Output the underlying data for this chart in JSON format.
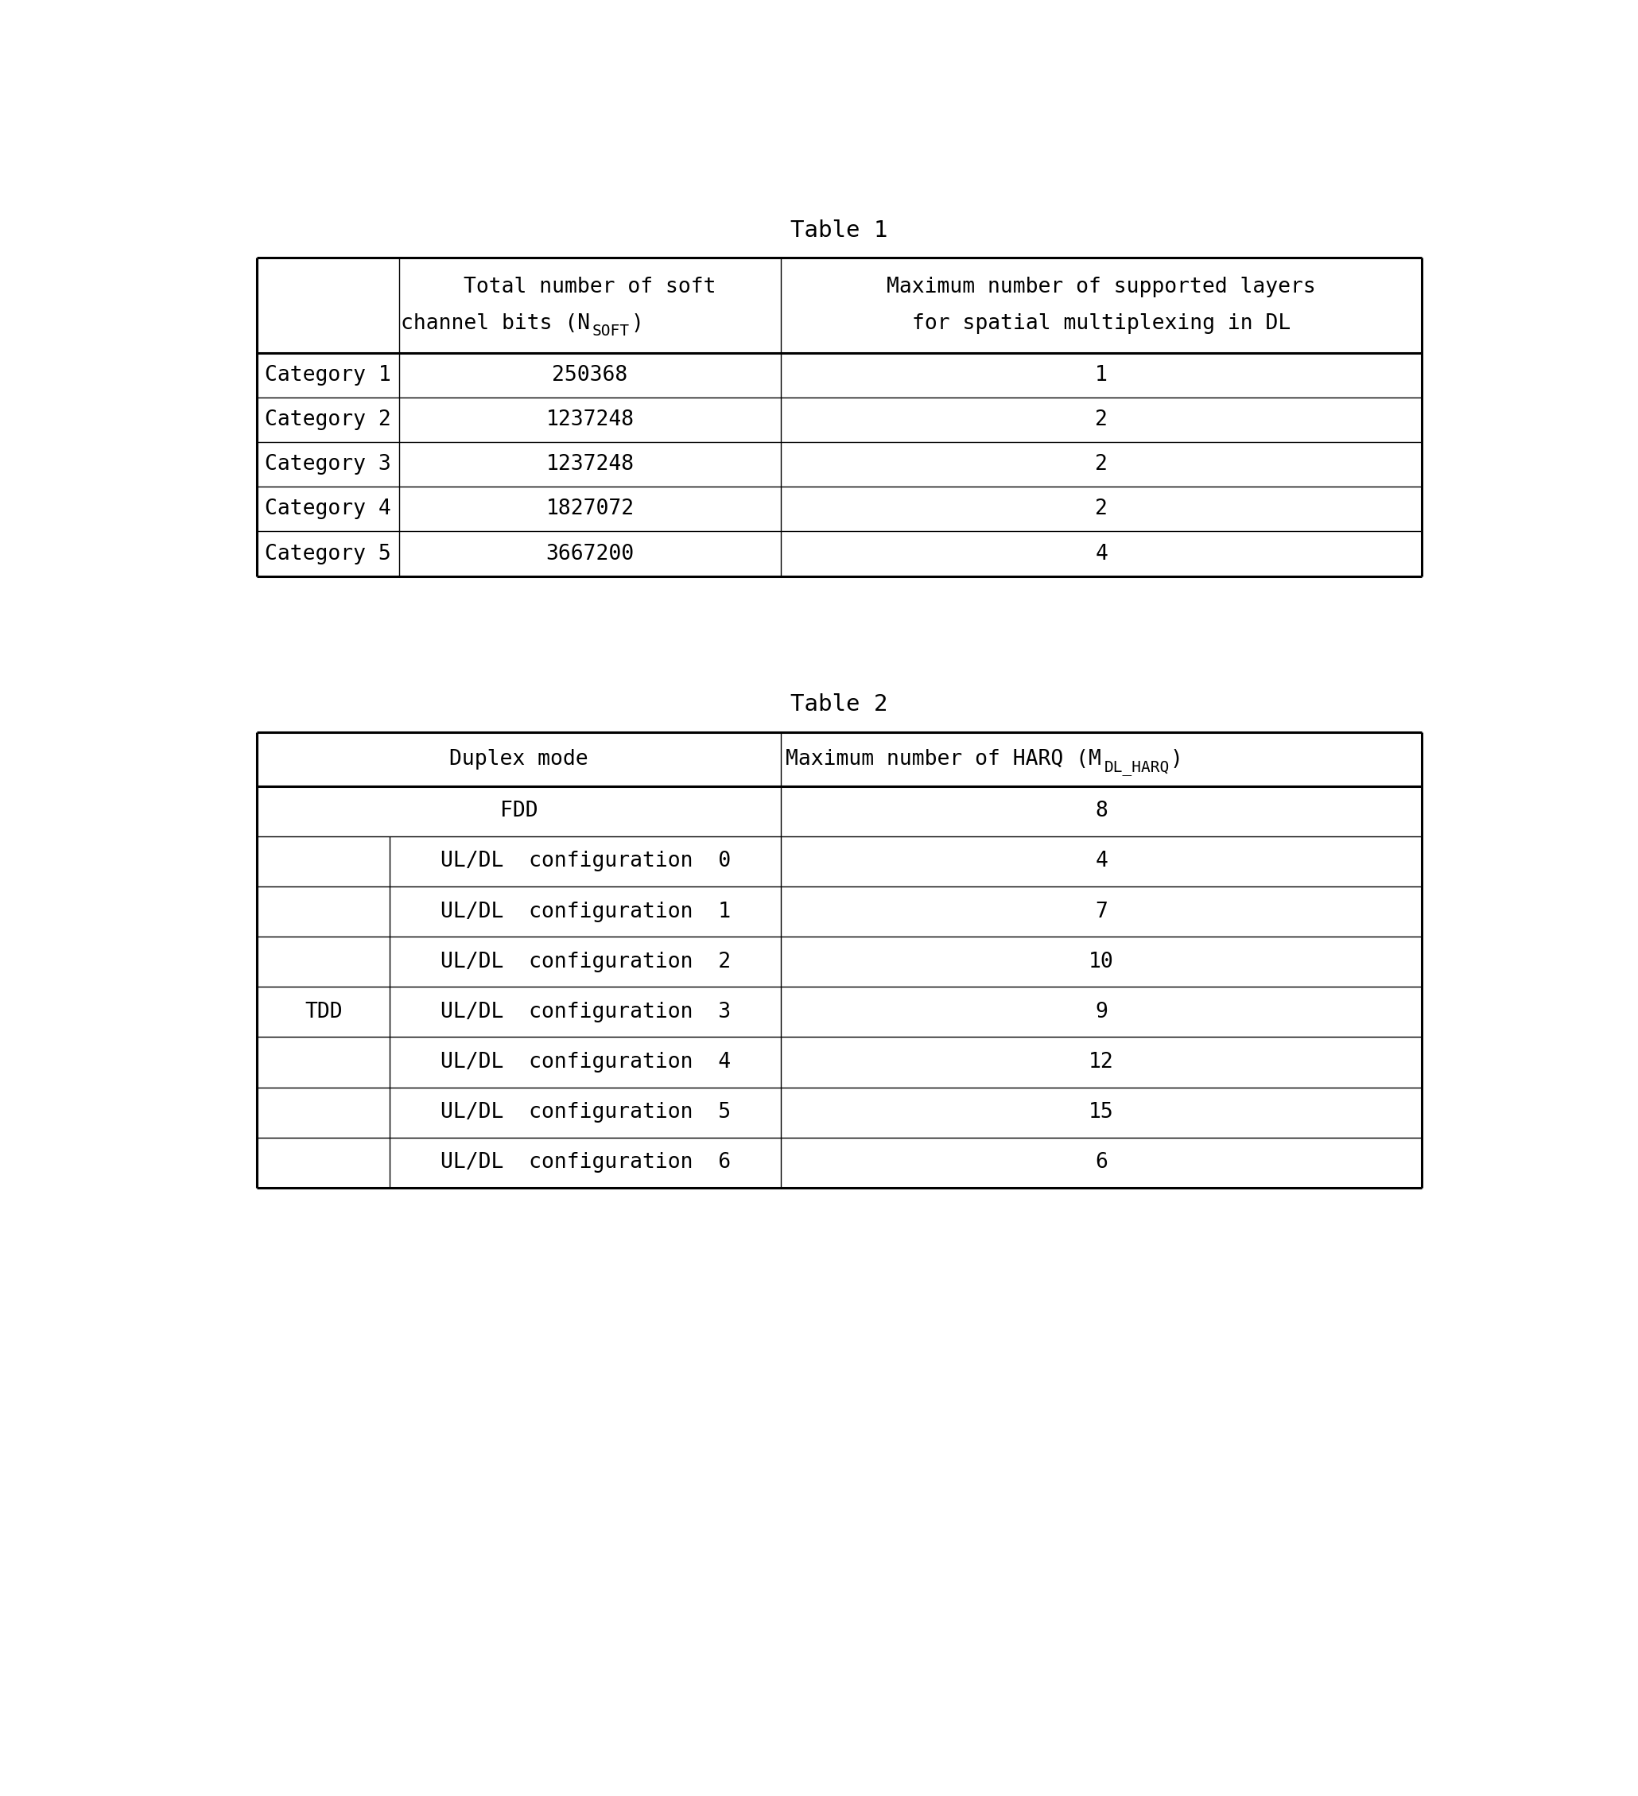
{
  "table1_title": "Table 1",
  "table1_rows": [
    [
      "Category 1",
      "250368",
      "1"
    ],
    [
      "Category 2",
      "1237248",
      "2"
    ],
    [
      "Category 3",
      "1237248",
      "2"
    ],
    [
      "Category 4",
      "1827072",
      "2"
    ],
    [
      "Category 5",
      "3667200",
      "4"
    ]
  ],
  "table2_title": "Table 2",
  "table2_fdd_row": [
    "FDD",
    "8"
  ],
  "table2_tdd_label": "TDD",
  "table2_tdd_rows": [
    [
      "UL/DL  configuration  0",
      "4"
    ],
    [
      "UL/DL  configuration  1",
      "7"
    ],
    [
      "UL/DL  configuration  2",
      "10"
    ],
    [
      "UL/DL  configuration  3",
      "9"
    ],
    [
      "UL/DL  configuration  4",
      "12"
    ],
    [
      "UL/DL  configuration  5",
      "15"
    ],
    [
      "UL/DL  configuration  6",
      "6"
    ]
  ],
  "bg_color": "#ffffff",
  "text_color": "#000000",
  "line_color": "#000000",
  "font_size": 19,
  "title_font_size": 21
}
